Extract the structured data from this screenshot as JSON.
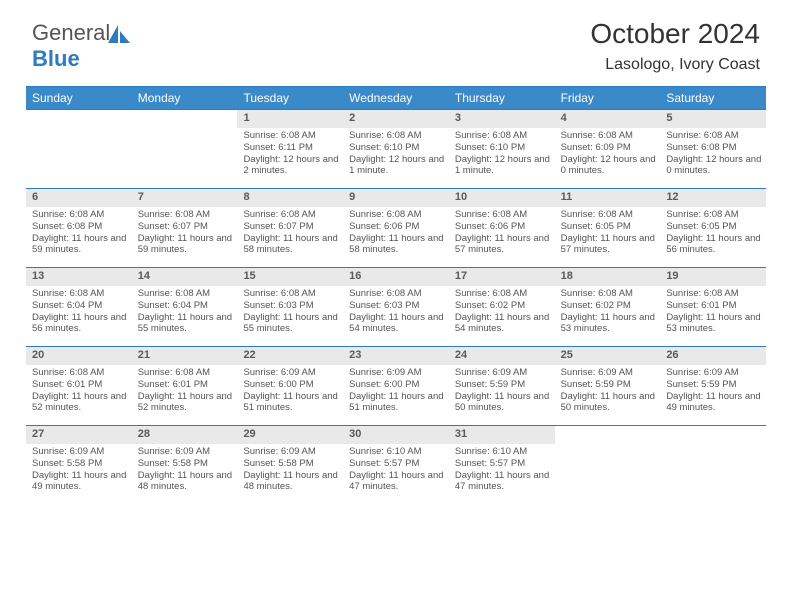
{
  "logo": {
    "word1": "General",
    "word2": "Blue"
  },
  "title": "October 2024",
  "subtitle": "Lasologo, Ivory Coast",
  "colors": {
    "header_bg": "#3a8ac9",
    "border": "#2d7cc0",
    "daynum_bg": "#e9e9e9",
    "text": "#555555"
  },
  "day_names": [
    "Sunday",
    "Monday",
    "Tuesday",
    "Wednesday",
    "Thursday",
    "Friday",
    "Saturday"
  ],
  "weeks": [
    [
      {
        "n": "",
        "sunrise": "",
        "sunset": "",
        "daylight": ""
      },
      {
        "n": "",
        "sunrise": "",
        "sunset": "",
        "daylight": ""
      },
      {
        "n": "1",
        "sunrise": "Sunrise: 6:08 AM",
        "sunset": "Sunset: 6:11 PM",
        "daylight": "Daylight: 12 hours and 2 minutes."
      },
      {
        "n": "2",
        "sunrise": "Sunrise: 6:08 AM",
        "sunset": "Sunset: 6:10 PM",
        "daylight": "Daylight: 12 hours and 1 minute."
      },
      {
        "n": "3",
        "sunrise": "Sunrise: 6:08 AM",
        "sunset": "Sunset: 6:10 PM",
        "daylight": "Daylight: 12 hours and 1 minute."
      },
      {
        "n": "4",
        "sunrise": "Sunrise: 6:08 AM",
        "sunset": "Sunset: 6:09 PM",
        "daylight": "Daylight: 12 hours and 0 minutes."
      },
      {
        "n": "5",
        "sunrise": "Sunrise: 6:08 AM",
        "sunset": "Sunset: 6:08 PM",
        "daylight": "Daylight: 12 hours and 0 minutes."
      }
    ],
    [
      {
        "n": "6",
        "sunrise": "Sunrise: 6:08 AM",
        "sunset": "Sunset: 6:08 PM",
        "daylight": "Daylight: 11 hours and 59 minutes."
      },
      {
        "n": "7",
        "sunrise": "Sunrise: 6:08 AM",
        "sunset": "Sunset: 6:07 PM",
        "daylight": "Daylight: 11 hours and 59 minutes."
      },
      {
        "n": "8",
        "sunrise": "Sunrise: 6:08 AM",
        "sunset": "Sunset: 6:07 PM",
        "daylight": "Daylight: 11 hours and 58 minutes."
      },
      {
        "n": "9",
        "sunrise": "Sunrise: 6:08 AM",
        "sunset": "Sunset: 6:06 PM",
        "daylight": "Daylight: 11 hours and 58 minutes."
      },
      {
        "n": "10",
        "sunrise": "Sunrise: 6:08 AM",
        "sunset": "Sunset: 6:06 PM",
        "daylight": "Daylight: 11 hours and 57 minutes."
      },
      {
        "n": "11",
        "sunrise": "Sunrise: 6:08 AM",
        "sunset": "Sunset: 6:05 PM",
        "daylight": "Daylight: 11 hours and 57 minutes."
      },
      {
        "n": "12",
        "sunrise": "Sunrise: 6:08 AM",
        "sunset": "Sunset: 6:05 PM",
        "daylight": "Daylight: 11 hours and 56 minutes."
      }
    ],
    [
      {
        "n": "13",
        "sunrise": "Sunrise: 6:08 AM",
        "sunset": "Sunset: 6:04 PM",
        "daylight": "Daylight: 11 hours and 56 minutes."
      },
      {
        "n": "14",
        "sunrise": "Sunrise: 6:08 AM",
        "sunset": "Sunset: 6:04 PM",
        "daylight": "Daylight: 11 hours and 55 minutes."
      },
      {
        "n": "15",
        "sunrise": "Sunrise: 6:08 AM",
        "sunset": "Sunset: 6:03 PM",
        "daylight": "Daylight: 11 hours and 55 minutes."
      },
      {
        "n": "16",
        "sunrise": "Sunrise: 6:08 AM",
        "sunset": "Sunset: 6:03 PM",
        "daylight": "Daylight: 11 hours and 54 minutes."
      },
      {
        "n": "17",
        "sunrise": "Sunrise: 6:08 AM",
        "sunset": "Sunset: 6:02 PM",
        "daylight": "Daylight: 11 hours and 54 minutes."
      },
      {
        "n": "18",
        "sunrise": "Sunrise: 6:08 AM",
        "sunset": "Sunset: 6:02 PM",
        "daylight": "Daylight: 11 hours and 53 minutes."
      },
      {
        "n": "19",
        "sunrise": "Sunrise: 6:08 AM",
        "sunset": "Sunset: 6:01 PM",
        "daylight": "Daylight: 11 hours and 53 minutes."
      }
    ],
    [
      {
        "n": "20",
        "sunrise": "Sunrise: 6:08 AM",
        "sunset": "Sunset: 6:01 PM",
        "daylight": "Daylight: 11 hours and 52 minutes."
      },
      {
        "n": "21",
        "sunrise": "Sunrise: 6:08 AM",
        "sunset": "Sunset: 6:01 PM",
        "daylight": "Daylight: 11 hours and 52 minutes."
      },
      {
        "n": "22",
        "sunrise": "Sunrise: 6:09 AM",
        "sunset": "Sunset: 6:00 PM",
        "daylight": "Daylight: 11 hours and 51 minutes."
      },
      {
        "n": "23",
        "sunrise": "Sunrise: 6:09 AM",
        "sunset": "Sunset: 6:00 PM",
        "daylight": "Daylight: 11 hours and 51 minutes."
      },
      {
        "n": "24",
        "sunrise": "Sunrise: 6:09 AM",
        "sunset": "Sunset: 5:59 PM",
        "daylight": "Daylight: 11 hours and 50 minutes."
      },
      {
        "n": "25",
        "sunrise": "Sunrise: 6:09 AM",
        "sunset": "Sunset: 5:59 PM",
        "daylight": "Daylight: 11 hours and 50 minutes."
      },
      {
        "n": "26",
        "sunrise": "Sunrise: 6:09 AM",
        "sunset": "Sunset: 5:59 PM",
        "daylight": "Daylight: 11 hours and 49 minutes."
      }
    ],
    [
      {
        "n": "27",
        "sunrise": "Sunrise: 6:09 AM",
        "sunset": "Sunset: 5:58 PM",
        "daylight": "Daylight: 11 hours and 49 minutes."
      },
      {
        "n": "28",
        "sunrise": "Sunrise: 6:09 AM",
        "sunset": "Sunset: 5:58 PM",
        "daylight": "Daylight: 11 hours and 48 minutes."
      },
      {
        "n": "29",
        "sunrise": "Sunrise: 6:09 AM",
        "sunset": "Sunset: 5:58 PM",
        "daylight": "Daylight: 11 hours and 48 minutes."
      },
      {
        "n": "30",
        "sunrise": "Sunrise: 6:10 AM",
        "sunset": "Sunset: 5:57 PM",
        "daylight": "Daylight: 11 hours and 47 minutes."
      },
      {
        "n": "31",
        "sunrise": "Sunrise: 6:10 AM",
        "sunset": "Sunset: 5:57 PM",
        "daylight": "Daylight: 11 hours and 47 minutes."
      },
      {
        "n": "",
        "sunrise": "",
        "sunset": "",
        "daylight": ""
      },
      {
        "n": "",
        "sunrise": "",
        "sunset": "",
        "daylight": ""
      }
    ]
  ]
}
